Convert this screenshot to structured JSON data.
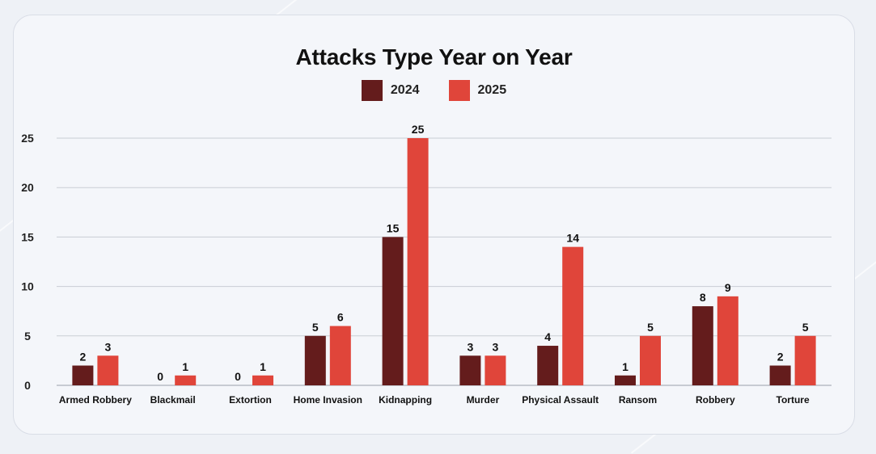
{
  "chart_data": {
    "type": "bar",
    "title": "Attacks Type Year on Year",
    "xlabel": "",
    "ylabel": "",
    "ylim": [
      0,
      25
    ],
    "yticks": [
      0,
      5,
      10,
      15,
      20,
      25
    ],
    "grid": true,
    "legend_position": "top-center",
    "categories": [
      "Armed Robbery",
      "Blackmail",
      "Extortion",
      "Home Invasion",
      "Kidnapping",
      "Murder",
      "Physical Assault",
      "Ransom",
      "Robbery",
      "Torture"
    ],
    "series": [
      {
        "name": "2024",
        "color": "#641c1c",
        "values": [
          2,
          0,
          0,
          5,
          15,
          3,
          4,
          1,
          8,
          2
        ]
      },
      {
        "name": "2025",
        "color": "#e0453a",
        "values": [
          3,
          1,
          1,
          6,
          25,
          3,
          14,
          5,
          9,
          5
        ]
      }
    ]
  }
}
